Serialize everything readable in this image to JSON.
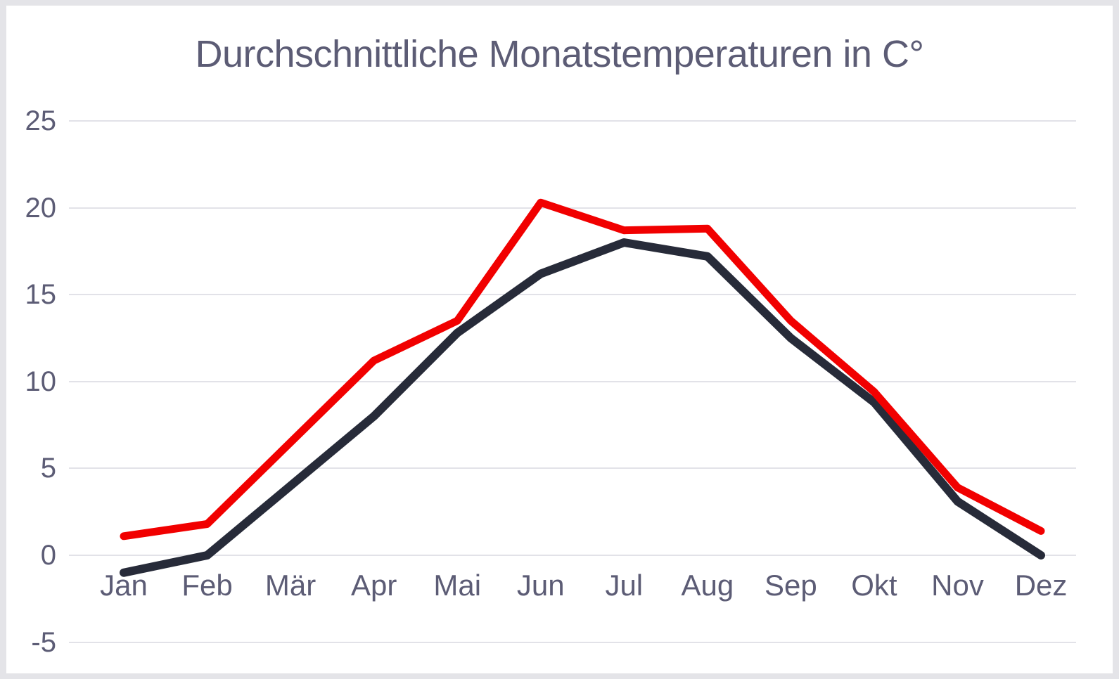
{
  "frame": {
    "background_color": "#ffffff",
    "border_color": "#e4e4e8"
  },
  "chart_data": {
    "type": "line",
    "title": "Durchschnittliche Monatstemperaturen in C°",
    "title_color": "#5c5c75",
    "text_color": "#5c5c75",
    "grid": true,
    "grid_color": "#e2e2e8",
    "legend": "none",
    "categories": [
      "Jan",
      "Feb",
      "Mär",
      "Apr",
      "Mai",
      "Jun",
      "Jul",
      "Aug",
      "Sep",
      "Okt",
      "Nov",
      "Dez"
    ],
    "y_ticks": [
      25,
      20,
      15,
      10,
      5,
      0,
      -5
    ],
    "ylim": [
      -5,
      25
    ],
    "xlabel": "",
    "ylabel": "",
    "series": [
      {
        "name": "dark-line",
        "color": "#272b39",
        "stroke_width": 12,
        "values": [
          -1.0,
          0.0,
          4.0,
          8.0,
          12.8,
          16.2,
          18.0,
          17.2,
          12.5,
          8.8,
          3.1,
          0.0
        ]
      },
      {
        "name": "red-line",
        "color": "#f10000",
        "stroke_width": 11,
        "values": [
          1.1,
          1.8,
          6.5,
          11.2,
          13.5,
          20.3,
          18.7,
          18.8,
          13.5,
          9.4,
          3.9,
          1.4
        ]
      }
    ]
  }
}
